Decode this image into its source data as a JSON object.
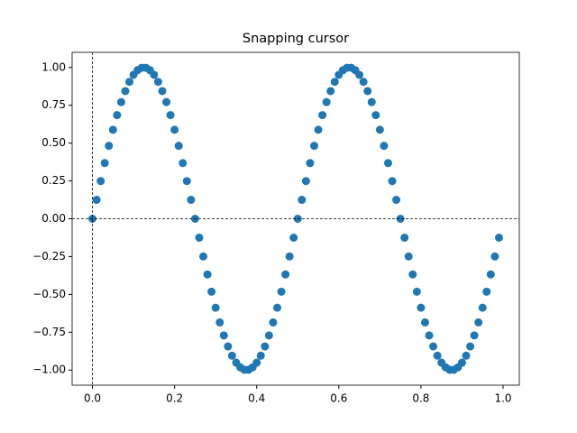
{
  "chart_data": {
    "type": "scatter",
    "title": "Snapping cursor",
    "x": [
      0,
      0.01,
      0.02,
      0.03,
      0.04,
      0.05,
      0.06,
      0.07,
      0.08,
      0.09,
      0.1,
      0.11,
      0.12,
      0.13,
      0.14,
      0.15,
      0.16,
      0.17,
      0.18,
      0.19,
      0.2,
      0.21,
      0.22,
      0.23,
      0.24,
      0.25,
      0.26,
      0.27,
      0.28,
      0.29,
      0.3,
      0.31,
      0.32,
      0.33,
      0.34,
      0.35,
      0.36,
      0.37,
      0.38,
      0.39,
      0.4,
      0.41,
      0.42,
      0.43,
      0.44,
      0.45,
      0.46,
      0.47,
      0.48,
      0.49,
      0.5,
      0.51,
      0.52,
      0.53,
      0.54,
      0.55,
      0.56,
      0.57,
      0.58,
      0.59,
      0.6,
      0.61,
      0.62,
      0.63,
      0.64,
      0.65,
      0.66,
      0.67,
      0.68,
      0.69,
      0.7,
      0.71,
      0.72,
      0.73,
      0.74,
      0.75,
      0.76,
      0.77,
      0.78,
      0.79,
      0.8,
      0.81,
      0.82,
      0.83,
      0.84,
      0.85,
      0.86,
      0.87,
      0.88,
      0.89,
      0.9,
      0.91,
      0.92,
      0.93,
      0.94,
      0.95,
      0.96,
      0.97,
      0.98,
      0.99
    ],
    "series": [
      {
        "color": "#1f77b4",
        "values": [
          0,
          0.125,
          0.249,
          0.368,
          0.482,
          0.588,
          0.685,
          0.771,
          0.844,
          0.905,
          0.951,
          0.982,
          0.998,
          0.998,
          0.982,
          0.951,
          0.905,
          0.844,
          0.771,
          0.685,
          0.588,
          0.482,
          0.368,
          0.249,
          0.125,
          0,
          -0.125,
          -0.249,
          -0.368,
          -0.482,
          -0.588,
          -0.685,
          -0.771,
          -0.844,
          -0.905,
          -0.951,
          -0.982,
          -0.998,
          -0.998,
          -0.982,
          -0.951,
          -0.905,
          -0.844,
          -0.771,
          -0.685,
          -0.588,
          -0.482,
          -0.368,
          -0.249,
          -0.125,
          0,
          0.125,
          0.249,
          0.368,
          0.482,
          0.588,
          0.685,
          0.771,
          0.844,
          0.905,
          0.951,
          0.982,
          0.998,
          0.998,
          0.982,
          0.951,
          0.905,
          0.844,
          0.771,
          0.685,
          0.588,
          0.482,
          0.368,
          0.249,
          0.125,
          0,
          -0.125,
          -0.249,
          -0.368,
          -0.482,
          -0.588,
          -0.685,
          -0.771,
          -0.844,
          -0.905,
          -0.951,
          -0.982,
          -0.998,
          -0.998,
          -0.982,
          -0.951,
          -0.905,
          -0.844,
          -0.771,
          -0.685,
          -0.588,
          -0.482,
          -0.368,
          -0.249,
          -0.125
        ]
      }
    ],
    "cursor": {
      "x": 0,
      "y": 0
    },
    "xlim": [
      -0.0495,
      1.0395
    ],
    "ylim": [
      -1.1,
      1.1
    ],
    "xticks": [
      {
        "value": 0,
        "label": "0.0"
      },
      {
        "value": 0.2,
        "label": "0.2"
      },
      {
        "value": 0.4,
        "label": "0.4"
      },
      {
        "value": 0.6,
        "label": "0.6"
      },
      {
        "value": 0.8,
        "label": "0.8"
      },
      {
        "value": 1,
        "label": "1.0"
      }
    ],
    "yticks": [
      {
        "value": -1,
        "label": "−1.00"
      },
      {
        "value": -0.75,
        "label": "−0.75"
      },
      {
        "value": -0.5,
        "label": "−0.50"
      },
      {
        "value": -0.25,
        "label": "−0.25"
      },
      {
        "value": 0,
        "label": "0.00"
      },
      {
        "value": 0.25,
        "label": "0.25"
      },
      {
        "value": 0.5,
        "label": "0.50"
      },
      {
        "value": 0.75,
        "label": "0.75"
      },
      {
        "value": 1,
        "label": "1.00"
      }
    ]
  }
}
